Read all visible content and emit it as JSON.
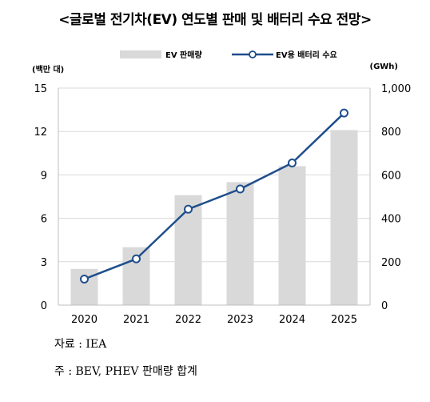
{
  "title": "<글로벌 전기차(EV) 연도별 판매 및 배터리 수요 전망>",
  "unit_left": "(백만 대)",
  "unit_right": "(GWh)",
  "legend": {
    "bar": "EV 판매량",
    "line": "EV용 배터리 수요"
  },
  "source": "자료 : IEA",
  "note": "주 : BEV, PHEV 판매량 합계",
  "chart_data": {
    "type": "bar",
    "categories": [
      "2020",
      "2021",
      "2022",
      "2023",
      "2024",
      "2025"
    ],
    "series": [
      {
        "name": "EV 판매량",
        "type": "bar",
        "axis": "left",
        "values": [
          2.5,
          4.0,
          7.6,
          8.5,
          9.6,
          12.1
        ]
      },
      {
        "name": "EV용 배터리 수요",
        "type": "line",
        "axis": "right",
        "values": [
          120,
          213,
          442,
          535,
          655,
          885
        ]
      }
    ],
    "y_left": {
      "ylim": [
        0,
        15
      ],
      "ticks": [
        0,
        3,
        6,
        9,
        12,
        15
      ],
      "tick_labels": [
        "0",
        "3",
        "6",
        "9",
        "12",
        "15"
      ]
    },
    "y_right": {
      "ylim": [
        0,
        1000
      ],
      "ticks": [
        0,
        200,
        400,
        600,
        800,
        1000
      ],
      "tick_labels": [
        "0",
        "200",
        "400",
        "600",
        "800",
        "1,000"
      ]
    },
    "grid": true,
    "legend_position": "top-center",
    "colors": {
      "bar": "#d9d9d9",
      "line": "#1f4e8c",
      "grid": "#d9d9d9"
    }
  }
}
